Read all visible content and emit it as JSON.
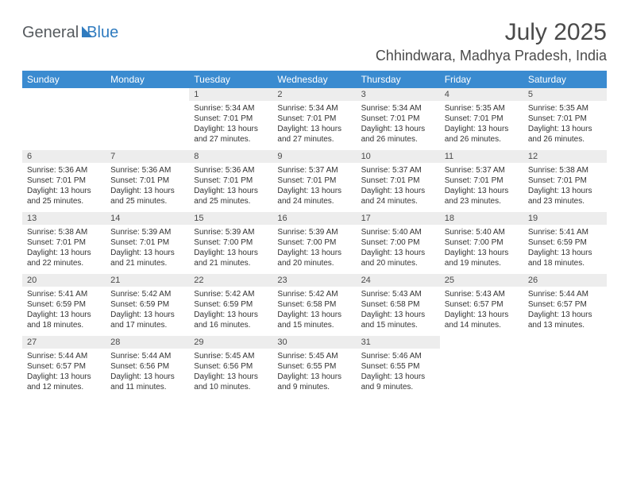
{
  "logo": {
    "text1": "General",
    "text2": "Blue"
  },
  "title": "July 2025",
  "location": "Chhindwara, Madhya Pradesh, India",
  "colors": {
    "header_bg": "#3a8bd0",
    "header_text": "#ffffff",
    "daynum_bg": "#ededed",
    "rule": "#2f6ea8",
    "text": "#4a4a4a",
    "logo_gray": "#555a5e",
    "logo_blue": "#2f7bbf"
  },
  "day_headers": [
    "Sunday",
    "Monday",
    "Tuesday",
    "Wednesday",
    "Thursday",
    "Friday",
    "Saturday"
  ],
  "weeks": [
    [
      null,
      null,
      {
        "n": "1",
        "sr": "5:34 AM",
        "ss": "7:01 PM",
        "dl": "13 hours and 27 minutes."
      },
      {
        "n": "2",
        "sr": "5:34 AM",
        "ss": "7:01 PM",
        "dl": "13 hours and 27 minutes."
      },
      {
        "n": "3",
        "sr": "5:34 AM",
        "ss": "7:01 PM",
        "dl": "13 hours and 26 minutes."
      },
      {
        "n": "4",
        "sr": "5:35 AM",
        "ss": "7:01 PM",
        "dl": "13 hours and 26 minutes."
      },
      {
        "n": "5",
        "sr": "5:35 AM",
        "ss": "7:01 PM",
        "dl": "13 hours and 26 minutes."
      }
    ],
    [
      {
        "n": "6",
        "sr": "5:36 AM",
        "ss": "7:01 PM",
        "dl": "13 hours and 25 minutes."
      },
      {
        "n": "7",
        "sr": "5:36 AM",
        "ss": "7:01 PM",
        "dl": "13 hours and 25 minutes."
      },
      {
        "n": "8",
        "sr": "5:36 AM",
        "ss": "7:01 PM",
        "dl": "13 hours and 25 minutes."
      },
      {
        "n": "9",
        "sr": "5:37 AM",
        "ss": "7:01 PM",
        "dl": "13 hours and 24 minutes."
      },
      {
        "n": "10",
        "sr": "5:37 AM",
        "ss": "7:01 PM",
        "dl": "13 hours and 24 minutes."
      },
      {
        "n": "11",
        "sr": "5:37 AM",
        "ss": "7:01 PM",
        "dl": "13 hours and 23 minutes."
      },
      {
        "n": "12",
        "sr": "5:38 AM",
        "ss": "7:01 PM",
        "dl": "13 hours and 23 minutes."
      }
    ],
    [
      {
        "n": "13",
        "sr": "5:38 AM",
        "ss": "7:01 PM",
        "dl": "13 hours and 22 minutes."
      },
      {
        "n": "14",
        "sr": "5:39 AM",
        "ss": "7:01 PM",
        "dl": "13 hours and 21 minutes."
      },
      {
        "n": "15",
        "sr": "5:39 AM",
        "ss": "7:00 PM",
        "dl": "13 hours and 21 minutes."
      },
      {
        "n": "16",
        "sr": "5:39 AM",
        "ss": "7:00 PM",
        "dl": "13 hours and 20 minutes."
      },
      {
        "n": "17",
        "sr": "5:40 AM",
        "ss": "7:00 PM",
        "dl": "13 hours and 20 minutes."
      },
      {
        "n": "18",
        "sr": "5:40 AM",
        "ss": "7:00 PM",
        "dl": "13 hours and 19 minutes."
      },
      {
        "n": "19",
        "sr": "5:41 AM",
        "ss": "6:59 PM",
        "dl": "13 hours and 18 minutes."
      }
    ],
    [
      {
        "n": "20",
        "sr": "5:41 AM",
        "ss": "6:59 PM",
        "dl": "13 hours and 18 minutes."
      },
      {
        "n": "21",
        "sr": "5:42 AM",
        "ss": "6:59 PM",
        "dl": "13 hours and 17 minutes."
      },
      {
        "n": "22",
        "sr": "5:42 AM",
        "ss": "6:59 PM",
        "dl": "13 hours and 16 minutes."
      },
      {
        "n": "23",
        "sr": "5:42 AM",
        "ss": "6:58 PM",
        "dl": "13 hours and 15 minutes."
      },
      {
        "n": "24",
        "sr": "5:43 AM",
        "ss": "6:58 PM",
        "dl": "13 hours and 15 minutes."
      },
      {
        "n": "25",
        "sr": "5:43 AM",
        "ss": "6:57 PM",
        "dl": "13 hours and 14 minutes."
      },
      {
        "n": "26",
        "sr": "5:44 AM",
        "ss": "6:57 PM",
        "dl": "13 hours and 13 minutes."
      }
    ],
    [
      {
        "n": "27",
        "sr": "5:44 AM",
        "ss": "6:57 PM",
        "dl": "13 hours and 12 minutes."
      },
      {
        "n": "28",
        "sr": "5:44 AM",
        "ss": "6:56 PM",
        "dl": "13 hours and 11 minutes."
      },
      {
        "n": "29",
        "sr": "5:45 AM",
        "ss": "6:56 PM",
        "dl": "13 hours and 10 minutes."
      },
      {
        "n": "30",
        "sr": "5:45 AM",
        "ss": "6:55 PM",
        "dl": "13 hours and 9 minutes."
      },
      {
        "n": "31",
        "sr": "5:46 AM",
        "ss": "6:55 PM",
        "dl": "13 hours and 9 minutes."
      },
      null,
      null
    ]
  ],
  "labels": {
    "sunrise": "Sunrise: ",
    "sunset": "Sunset: ",
    "daylight": "Daylight: "
  }
}
